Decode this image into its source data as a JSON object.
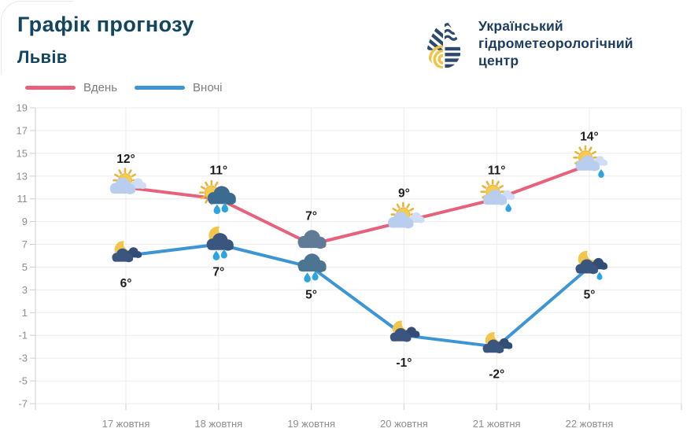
{
  "header": {
    "title": "Графік прогнозу",
    "city": "Львів"
  },
  "logo": {
    "org_lines": [
      "Український",
      "гідрометеорологічний",
      "центр"
    ]
  },
  "legend": {
    "items": [
      {
        "label": "Вдень",
        "color": "#e7617c"
      },
      {
        "label": "Вночі",
        "color": "#3d95d3"
      }
    ]
  },
  "chart_data": {
    "type": "line",
    "title": "Графік прогнозу",
    "subtitle": "Львів",
    "categories": [
      "17 жовтня",
      "18 жовтня",
      "19 жовтня",
      "20 жовтня",
      "21 жовтня",
      "22 жовтня"
    ],
    "series": [
      {
        "name": "Вдень",
        "color": "#e7617c",
        "values": [
          12,
          11,
          7,
          9,
          11,
          14
        ],
        "point_labels": [
          "12°",
          "11°",
          "7°",
          "9°",
          "11°",
          "14°"
        ],
        "icons": [
          "sun-clouds",
          "sun-raincloud",
          "cloud-drizzle",
          "sun-clouds",
          "sun-cloud-lightrain",
          "sun-cloud-lightrain"
        ],
        "label_position": "above"
      },
      {
        "name": "Вночі",
        "color": "#3d95d3",
        "values": [
          6,
          7,
          5,
          -1,
          -2,
          5
        ],
        "point_labels": [
          "6°",
          "7°",
          "5°",
          "-1°",
          "-2°",
          "5°"
        ],
        "icons": [
          "moon-clouds",
          "moon-raincloud",
          "raincloud",
          "moon-clouds",
          "moon-clouds",
          "moon-clouds-rain"
        ],
        "label_position": "below"
      }
    ],
    "ylim": [
      -7,
      19
    ],
    "ytick_step": 2,
    "grid": true,
    "legend_position": "top-left"
  },
  "palette": {
    "sun_core": "#f6cb4e",
    "sun_ray": "#eab33c",
    "moon": "#f2c64d",
    "cloud_light": "#b9ceef",
    "cloud_light_2": "#cfdef6",
    "cloud_day_rain": "#3c6b90",
    "cloud_slate": "#5f7b97",
    "cloud_teal": "#4b7590",
    "cloud_navy": "#3a567e",
    "cloud_navy_2": "#324e76",
    "drop": "#2ba4e0",
    "drizzle_mark": "#35546f",
    "grid": "#ececec",
    "axis": "#cfcfcf",
    "tick_label": "#8e8e8e",
    "temp_label": "#1d1d1d"
  }
}
